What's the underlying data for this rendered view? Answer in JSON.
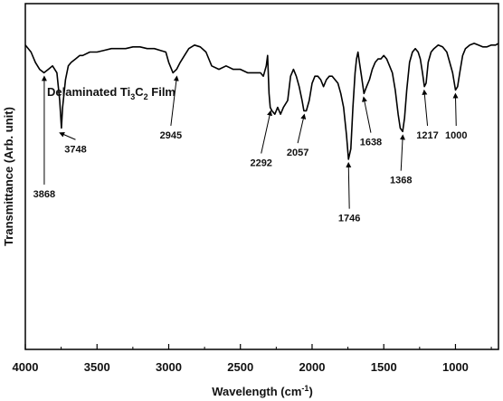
{
  "chart_data": {
    "type": "line",
    "title_parts": [
      "Delaminated Ti",
      "3",
      "C",
      "2",
      " Film"
    ],
    "xlabel_main": "Wavelength (cm",
    "xlabel_sup": "-1",
    "xlabel_end": ")",
    "ylabel": "Transmittance (Arb. unit)",
    "xlim": [
      4000,
      700
    ],
    "x_reversed": true,
    "x_ticks": [
      4000,
      3500,
      3000,
      2500,
      2000,
      1500,
      1000
    ],
    "y_ticks_labeled": false,
    "grid": false,
    "line_color": "#000000",
    "series": [
      {
        "x": [
          4000,
          3960,
          3930,
          3900,
          3870,
          3840,
          3810,
          3780,
          3760,
          3748,
          3740,
          3720,
          3700,
          3680,
          3650,
          3620,
          3600,
          3550,
          3500,
          3450,
          3400,
          3350,
          3300,
          3250,
          3200,
          3150,
          3100,
          3060,
          3020,
          3000,
          2970,
          2945,
          2920,
          2890,
          2860,
          2820,
          2780,
          2740,
          2700,
          2650,
          2600,
          2550,
          2500,
          2450,
          2400,
          2360,
          2340,
          2320,
          2310,
          2300,
          2292,
          2280,
          2260,
          2240,
          2220,
          2200,
          2170,
          2150,
          2130,
          2110,
          2090,
          2070,
          2057,
          2040,
          2020,
          2000,
          1980,
          1960,
          1940,
          1920,
          1900,
          1880,
          1860,
          1840,
          1820,
          1800,
          1780,
          1760,
          1746,
          1730,
          1715,
          1700,
          1690,
          1680,
          1670,
          1655,
          1638,
          1620,
          1600,
          1580,
          1560,
          1540,
          1520,
          1500,
          1480,
          1460,
          1440,
          1420,
          1400,
          1385,
          1368,
          1355,
          1340,
          1320,
          1300,
          1280,
          1260,
          1245,
          1230,
          1217,
          1205,
          1190,
          1170,
          1150,
          1120,
          1090,
          1060,
          1040,
          1020,
          1000,
          985,
          970,
          950,
          930,
          900,
          870,
          840,
          810,
          780,
          750,
          720,
          700
        ],
        "y": [
          0.88,
          0.86,
          0.83,
          0.81,
          0.8,
          0.81,
          0.82,
          0.8,
          0.72,
          0.64,
          0.7,
          0.78,
          0.82,
          0.83,
          0.84,
          0.85,
          0.85,
          0.86,
          0.86,
          0.865,
          0.87,
          0.87,
          0.87,
          0.875,
          0.875,
          0.87,
          0.87,
          0.865,
          0.86,
          0.83,
          0.8,
          0.81,
          0.83,
          0.85,
          0.87,
          0.88,
          0.875,
          0.86,
          0.82,
          0.81,
          0.82,
          0.81,
          0.81,
          0.8,
          0.8,
          0.8,
          0.79,
          0.82,
          0.85,
          0.74,
          0.7,
          0.69,
          0.68,
          0.7,
          0.68,
          0.7,
          0.72,
          0.79,
          0.81,
          0.79,
          0.76,
          0.72,
          0.69,
          0.69,
          0.72,
          0.77,
          0.79,
          0.79,
          0.78,
          0.76,
          0.78,
          0.79,
          0.79,
          0.78,
          0.77,
          0.74,
          0.7,
          0.62,
          0.55,
          0.58,
          0.7,
          0.8,
          0.84,
          0.86,
          0.83,
          0.79,
          0.74,
          0.76,
          0.78,
          0.81,
          0.83,
          0.84,
          0.84,
          0.85,
          0.84,
          0.82,
          0.8,
          0.75,
          0.68,
          0.64,
          0.63,
          0.67,
          0.75,
          0.83,
          0.86,
          0.87,
          0.86,
          0.84,
          0.8,
          0.76,
          0.77,
          0.83,
          0.86,
          0.87,
          0.88,
          0.875,
          0.86,
          0.83,
          0.8,
          0.75,
          0.76,
          0.8,
          0.85,
          0.87,
          0.88,
          0.885,
          0.88,
          0.875,
          0.875,
          0.88,
          0.88,
          0.885
        ]
      }
    ],
    "annotations": [
      {
        "label": "3868",
        "x": 3868,
        "y": 0.8,
        "label_x": 3868,
        "label_y": 0.44
      },
      {
        "label": "3748",
        "x": 3748,
        "y": 0.64,
        "label_x": 3650,
        "label_y": 0.57
      },
      {
        "label": "2945",
        "x": 2945,
        "y": 0.8,
        "label_x": 2985,
        "label_y": 0.61
      },
      {
        "label": "2292",
        "x": 2292,
        "y": 0.7,
        "label_x": 2355,
        "label_y": 0.53
      },
      {
        "label": "2057",
        "x": 2057,
        "y": 0.69,
        "label_x": 2100,
        "label_y": 0.56
      },
      {
        "label": "1746",
        "x": 1746,
        "y": 0.55,
        "label_x": 1740,
        "label_y": 0.37
      },
      {
        "label": "1638",
        "x": 1638,
        "y": 0.74,
        "label_x": 1590,
        "label_y": 0.59
      },
      {
        "label": "1368",
        "x": 1368,
        "y": 0.63,
        "label_x": 1380,
        "label_y": 0.48
      },
      {
        "label": "1217",
        "x": 1217,
        "y": 0.76,
        "label_x": 1195,
        "label_y": 0.61
      },
      {
        "label": "1000",
        "x": 1000,
        "y": 0.75,
        "label_x": 995,
        "label_y": 0.61
      }
    ]
  }
}
